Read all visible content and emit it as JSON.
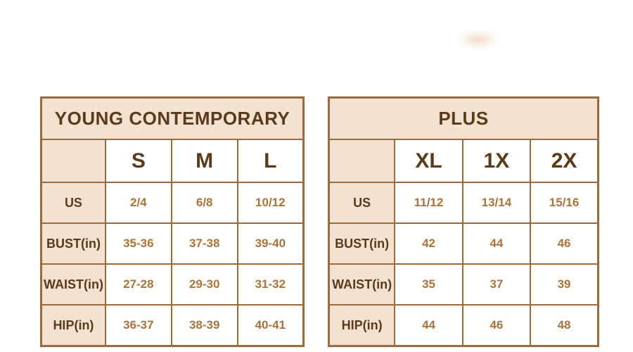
{
  "colors": {
    "page_background": "#ffffff",
    "cell_beige": "#f3e2d1",
    "cell_white": "#ffffff",
    "border_brown": "#9c6a3d",
    "heading_text": "#5b3a1c",
    "value_text": "#a9743c"
  },
  "chart_data": [
    {
      "type": "table",
      "title": "YOUNG CONTEMPORARY",
      "columns": [
        "",
        "S",
        "M",
        "L"
      ],
      "rows": [
        [
          "US",
          "2/4",
          "6/8",
          "10/12"
        ],
        [
          "BUST(in)",
          "35-36",
          "37-38",
          "39-40"
        ],
        [
          "WAIST(in)",
          "27-28",
          "29-30",
          "31-32"
        ],
        [
          "HIP(in)",
          "36-37",
          "38-39",
          "40-41"
        ]
      ]
    },
    {
      "type": "table",
      "title": "PLUS",
      "columns": [
        "",
        "XL",
        "1X",
        "2X"
      ],
      "rows": [
        [
          "US",
          "11/12",
          "13/14",
          "15/16"
        ],
        [
          "BUST(in)",
          "42",
          "44",
          "46"
        ],
        [
          "WAIST(in)",
          "35",
          "37",
          "39"
        ],
        [
          "HIP(in)",
          "44",
          "46",
          "48"
        ]
      ]
    }
  ]
}
